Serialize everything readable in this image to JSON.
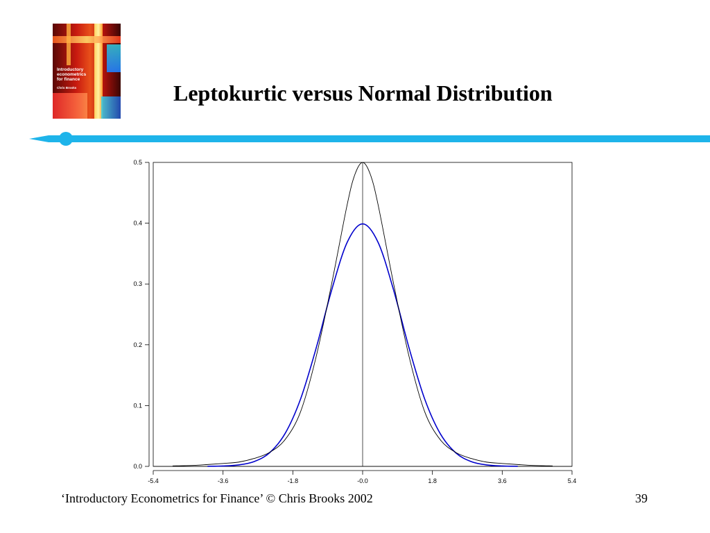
{
  "slide": {
    "title": "Leptokurtic versus Normal Distribution",
    "footer": "‘Introductory Econometrics for Finance’ © Chris Brooks 2002",
    "page_number": "39",
    "accent_color": "#1eb4ea"
  },
  "book_cover": {
    "title_lines": [
      "Introductory",
      "econometrics",
      "for finance"
    ],
    "author": "Chris Brooks"
  },
  "chart_data": {
    "type": "line",
    "xlim": [
      -5.4,
      5.4
    ],
    "ylim": [
      0.0,
      0.5
    ],
    "x_ticks": [
      "-5.4",
      "-3.6",
      "-1.8",
      "-0.0",
      "1.8",
      "3.6",
      "5.4"
    ],
    "y_ticks": [
      "0.0",
      "0.1",
      "0.2",
      "0.3",
      "0.4",
      "0.5"
    ],
    "grid": false,
    "series": [
      {
        "color": "#0000cc",
        "x": [
          -4.0,
          -3.6,
          -3.2,
          -2.8,
          -2.4,
          -2.0,
          -1.6,
          -1.2,
          -0.8,
          -0.4,
          0.0,
          0.4,
          0.8,
          1.2,
          1.6,
          2.0,
          2.4,
          2.8,
          3.2,
          3.6,
          4.0
        ],
        "y": [
          0.0001,
          0.0006,
          0.0024,
          0.0079,
          0.0224,
          0.054,
          0.1109,
          0.1942,
          0.2897,
          0.3683,
          0.3989,
          0.3683,
          0.2897,
          0.1942,
          0.1109,
          0.054,
          0.0224,
          0.0079,
          0.0024,
          0.0006,
          0.0001
        ]
      },
      {
        "color": "#000000",
        "x": [
          -4.9,
          -4.4,
          -4.0,
          -3.6,
          -3.2,
          -2.8,
          -2.4,
          -2.0,
          -1.6,
          -1.2,
          -0.8,
          -0.4,
          -0.2,
          0.0,
          0.2,
          0.4,
          0.8,
          1.2,
          1.6,
          2.0,
          2.4,
          2.8,
          3.2,
          3.6,
          4.0,
          4.4,
          4.9
        ],
        "y": [
          0.0008,
          0.0015,
          0.003,
          0.0048,
          0.007,
          0.013,
          0.023,
          0.044,
          0.09,
          0.18,
          0.3,
          0.43,
          0.48,
          0.5,
          0.48,
          0.43,
          0.3,
          0.18,
          0.09,
          0.044,
          0.023,
          0.013,
          0.007,
          0.0048,
          0.003,
          0.0015,
          0.0008
        ]
      }
    ]
  }
}
